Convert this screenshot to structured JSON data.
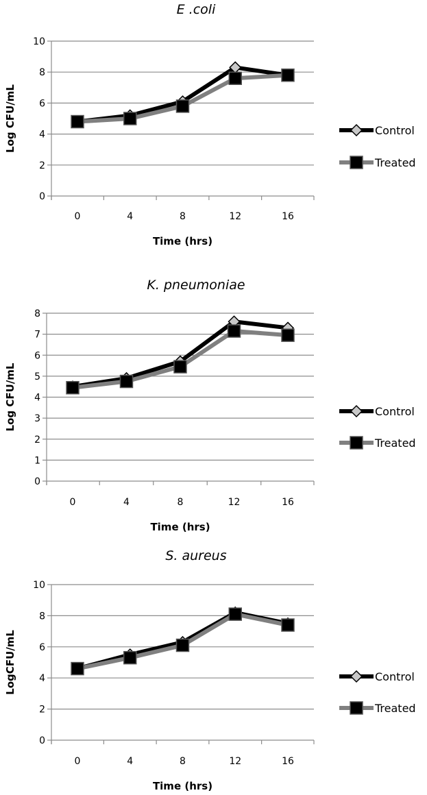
{
  "chart_data": [
    {
      "type": "line",
      "title": "E .coli",
      "xlabel": "Time (hrs)",
      "ylabel": "Log CFU/mL",
      "x": [
        0,
        4,
        8,
        12,
        16
      ],
      "ylim": [
        0,
        10
      ],
      "yticks": [
        0,
        2,
        4,
        6,
        8,
        10
      ],
      "grid": true,
      "legend_position": "right",
      "series": [
        {
          "name": "Control",
          "values": [
            4.8,
            5.2,
            6.1,
            8.3,
            7.8
          ],
          "color": "#000000",
          "marker": "diamond"
        },
        {
          "name": "Treated",
          "values": [
            4.8,
            5.0,
            5.8,
            7.6,
            7.8
          ],
          "color": "#808080",
          "marker": "square"
        }
      ]
    },
    {
      "type": "line",
      "title": "K. pneumoniae",
      "xlabel": "Time (hrs)",
      "ylabel": "Log CFU/mL",
      "x": [
        0,
        4,
        8,
        12,
        16
      ],
      "ylim": [
        0,
        8
      ],
      "yticks": [
        0,
        1,
        2,
        3,
        4,
        5,
        6,
        7,
        8
      ],
      "grid": true,
      "legend_position": "right",
      "series": [
        {
          "name": "Control",
          "values": [
            4.5,
            4.9,
            5.7,
            7.6,
            7.3
          ],
          "color": "#000000",
          "marker": "diamond"
        },
        {
          "name": "Treated",
          "values": [
            4.45,
            4.75,
            5.45,
            7.15,
            6.95
          ],
          "color": "#808080",
          "marker": "square"
        }
      ]
    },
    {
      "type": "line",
      "title": "S. aureus",
      "xlabel": "Time (hrs)",
      "ylabel": "LogCFU/mL",
      "x": [
        0,
        4,
        8,
        12,
        16
      ],
      "ylim": [
        0,
        10
      ],
      "yticks": [
        0,
        2,
        4,
        6,
        8,
        10
      ],
      "grid": true,
      "legend_position": "right",
      "series": [
        {
          "name": "Control",
          "values": [
            4.6,
            5.5,
            6.3,
            8.2,
            7.5
          ],
          "color": "#000000",
          "marker": "diamond"
        },
        {
          "name": "Treated",
          "values": [
            4.6,
            5.3,
            6.1,
            8.1,
            7.4
          ],
          "color": "#808080",
          "marker": "square"
        }
      ]
    }
  ]
}
